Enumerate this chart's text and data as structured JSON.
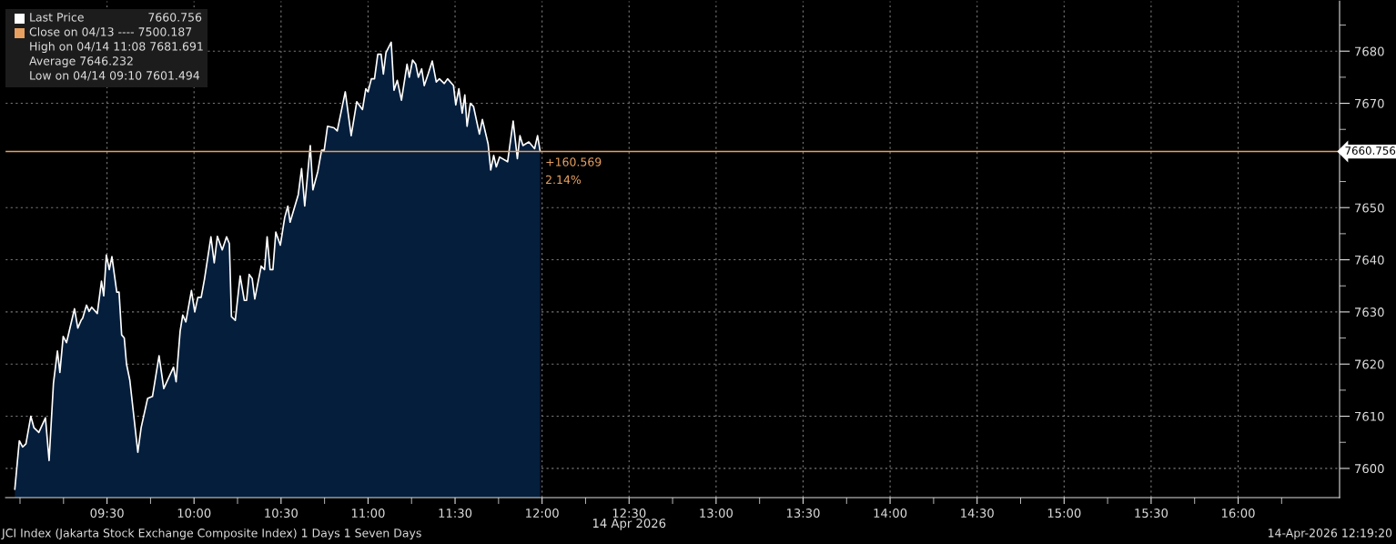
{
  "chart_data": {
    "type": "area",
    "xlabel": "14 Apr 2026",
    "x": [
      8.97,
      8.996,
      9.015,
      9.034,
      9.062,
      9.08,
      9.108,
      9.146,
      9.167,
      9.192,
      9.215,
      9.229,
      9.248,
      9.267,
      9.313,
      9.332,
      9.351,
      9.36,
      9.382,
      9.397,
      9.412,
      9.444,
      9.468,
      9.481,
      9.496,
      9.513,
      9.528,
      9.556,
      9.569,
      9.584,
      9.599,
      9.612,
      9.631,
      9.677,
      9.696,
      9.733,
      9.761,
      9.799,
      9.826,
      9.882,
      9.897,
      9.92,
      9.935,
      9.953,
      9.985,
      10.004,
      10.022,
      10.041,
      10.06,
      10.097,
      10.116,
      10.134,
      10.162,
      10.187,
      10.203,
      10.215,
      10.237,
      10.265,
      10.289,
      10.302,
      10.317,
      10.334,
      10.349,
      10.386,
      10.405,
      10.42,
      10.437,
      10.453,
      10.47,
      10.496,
      10.521,
      10.539,
      10.552,
      10.599,
      10.618,
      10.636,
      10.668,
      10.683,
      10.711,
      10.733,
      10.748,
      10.767,
      10.804,
      10.823,
      10.869,
      10.903,
      10.935,
      10.968,
      10.987,
      11.0,
      11.019,
      11.037,
      11.056,
      11.075,
      11.088,
      11.103,
      11.133,
      11.149,
      11.168,
      11.192,
      11.224,
      11.237,
      11.256,
      11.274,
      11.289,
      11.308,
      11.323,
      11.345,
      11.369,
      11.392,
      11.41,
      11.438,
      11.457,
      11.491,
      11.504,
      11.522,
      11.541,
      11.556,
      11.569,
      11.588,
      11.606,
      11.64,
      11.657,
      11.69,
      11.705,
      11.722,
      11.737,
      11.756,
      11.802,
      11.834,
      11.858,
      11.873,
      11.89,
      11.924,
      11.957,
      11.974,
      11.989
    ],
    "series": [
      {
        "name": "Last Price",
        "color": "#ffffff",
        "values": [
          7596,
          7605.3,
          7604.1,
          7604.7,
          7610,
          7607.8,
          7606.9,
          7609.7,
          7601.5,
          7616.3,
          7622.5,
          7618.4,
          7625.3,
          7624.1,
          7630.6,
          7626.9,
          7628.4,
          7628.8,
          7631.3,
          7630.1,
          7630.9,
          7629.7,
          7635.9,
          7633.1,
          7640.9,
          7638.1,
          7640.6,
          7633.8,
          7633.8,
          7625.6,
          7625.0,
          7620.0,
          7616.9,
          7603.1,
          7607.8,
          7613.4,
          7613.8,
          7621.6,
          7615.3,
          7619.4,
          7616.6,
          7626.3,
          7629.4,
          7628.1,
          7634.1,
          7630.0,
          7632.8,
          7632.8,
          7636.3,
          7644.4,
          7639.4,
          7644.5,
          7641.9,
          7644.4,
          7643.1,
          7629.1,
          7628.4,
          7636.9,
          7632.2,
          7632.2,
          7637.2,
          7636.4,
          7632.5,
          7638.8,
          7638.1,
          7644.4,
          7638.1,
          7638.1,
          7645.3,
          7642.8,
          7648.1,
          7650.3,
          7647.2,
          7652.5,
          7657.5,
          7650.3,
          7661.9,
          7653.4,
          7656.9,
          7661.0,
          7661.0,
          7665.6,
          7665.3,
          7664.7,
          7672.2,
          7663.8,
          7670.3,
          7668.8,
          7672.8,
          7672.2,
          7674.7,
          7674.7,
          7679.4,
          7679.4,
          7675.6,
          7679.7,
          7681.7,
          7672.5,
          7674.4,
          7670.6,
          7677.5,
          7675.0,
          7678.3,
          7677.5,
          7675.0,
          7676.6,
          7673.4,
          7675.6,
          7678.1,
          7674.1,
          7674.7,
          7673.8,
          7674.7,
          7673.4,
          7669.7,
          7672.8,
          7668.1,
          7671.6,
          7665.6,
          7670.0,
          7669.4,
          7664.1,
          7666.9,
          7662.2,
          7657.2,
          7660.0,
          7657.8,
          7659.7,
          7658.8,
          7666.6,
          7659.4,
          7663.8,
          7661.9,
          7662.6,
          7661.3,
          7663.8,
          7660.8
        ]
      }
    ],
    "xlim": [
      8.917,
      16.583
    ],
    "xticks": [
      {
        "value": 9.0,
        "label": null
      },
      {
        "value": 9.25,
        "label": null
      },
      {
        "value": 9.5,
        "label": "09:30"
      },
      {
        "value": 9.75,
        "label": null
      },
      {
        "value": 10.0,
        "label": "10:00"
      },
      {
        "value": 10.25,
        "label": null
      },
      {
        "value": 10.5,
        "label": "10:30"
      },
      {
        "value": 10.75,
        "label": null
      },
      {
        "value": 11.0,
        "label": "11:00"
      },
      {
        "value": 11.25,
        "label": null
      },
      {
        "value": 11.5,
        "label": "11:30"
      },
      {
        "value": 11.75,
        "label": null
      },
      {
        "value": 12.0,
        "label": "12:00"
      },
      {
        "value": 12.25,
        "label": null
      },
      {
        "value": 12.5,
        "label": "12:30"
      },
      {
        "value": 12.75,
        "label": null
      },
      {
        "value": 13.0,
        "label": "13:00"
      },
      {
        "value": 13.25,
        "label": null
      },
      {
        "value": 13.5,
        "label": "13:30"
      },
      {
        "value": 13.75,
        "label": null
      },
      {
        "value": 14.0,
        "label": "14:00"
      },
      {
        "value": 14.25,
        "label": null
      },
      {
        "value": 14.5,
        "label": "14:30"
      },
      {
        "value": 14.75,
        "label": null
      },
      {
        "value": 15.0,
        "label": "15:00"
      },
      {
        "value": 15.25,
        "label": null
      },
      {
        "value": 15.5,
        "label": "15:30"
      },
      {
        "value": 15.75,
        "label": null
      },
      {
        "value": 16.0,
        "label": "16:00"
      },
      {
        "value": 16.25,
        "label": null
      }
    ],
    "ylim": [
      7594.4,
      7689.6
    ],
    "yticks": [
      7600,
      {
        "value": 7605,
        "label": null
      },
      7610,
      {
        "value": 7615,
        "label": null
      },
      7620,
      {
        "value": 7625,
        "label": null
      },
      7630,
      {
        "value": 7635,
        "label": null
      },
      7640,
      {
        "value": 7645,
        "label": null
      },
      7650,
      {
        "value": 7655,
        "label": null
      },
      {
        "value": 7665,
        "label": null
      },
      7670,
      {
        "value": 7675,
        "label": null
      },
      7680,
      {
        "value": 7685,
        "label": null
      }
    ],
    "ref_lines": [
      {
        "axis": "y",
        "value": 7660.756,
        "label": "7660.756",
        "color": "#e8a060"
      }
    ],
    "annotations": [
      "7660.756",
      "Close on 04/13 ---- 7500.187",
      "High on 04/14 11:08 7681.691",
      "Average 7646.232",
      "Low on 04/14 09:10 7601.494",
      {
        "text": "+160.569",
        "x": 11.989,
        "y": 7660.756
      },
      {
        "text": "2.14%",
        "x": 11.989,
        "y": 7660.756
      },
      "JCI Index (Jakarta Stock Exchange Composite Index) 1 Days 1 Seven Days",
      "14-Apr-2026 12:19:20"
    ],
    "grid": true,
    "legend": "top left"
  }
}
